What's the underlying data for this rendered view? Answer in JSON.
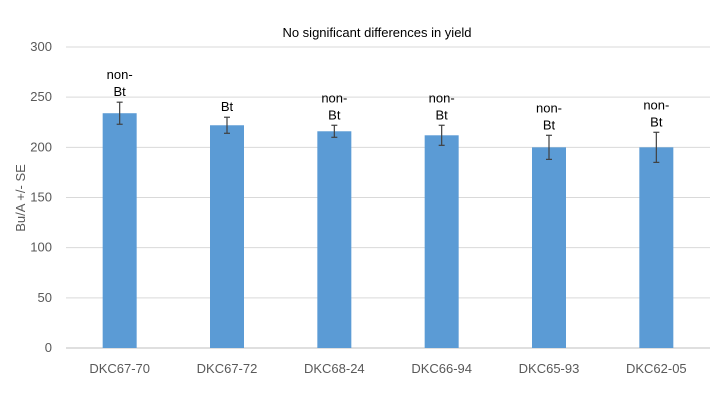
{
  "chart_data": {
    "type": "bar",
    "title": "No significant differences in yield",
    "ylabel": "Bu/A +/- SE",
    "xlabel": "",
    "ylim": [
      0,
      300
    ],
    "yticks": [
      0,
      50,
      100,
      150,
      200,
      250,
      300
    ],
    "grid": true,
    "categories": [
      "DKC67-70",
      "DKC67-72",
      "DKC68-24",
      "DKC66-94",
      "DKC65-93",
      "DKC62-05"
    ],
    "values": [
      234,
      222,
      216,
      212,
      200,
      200
    ],
    "error": [
      11,
      8,
      6,
      10,
      12,
      15
    ],
    "labels": [
      [
        "non-",
        "Bt"
      ],
      [
        "Bt"
      ],
      [
        "non-",
        "Bt"
      ],
      [
        "non-",
        "Bt"
      ],
      [
        "non-",
        "Bt"
      ],
      [
        "non-",
        "Bt"
      ]
    ],
    "bar_color": "#5b9bd5",
    "error_color": "#404040"
  }
}
